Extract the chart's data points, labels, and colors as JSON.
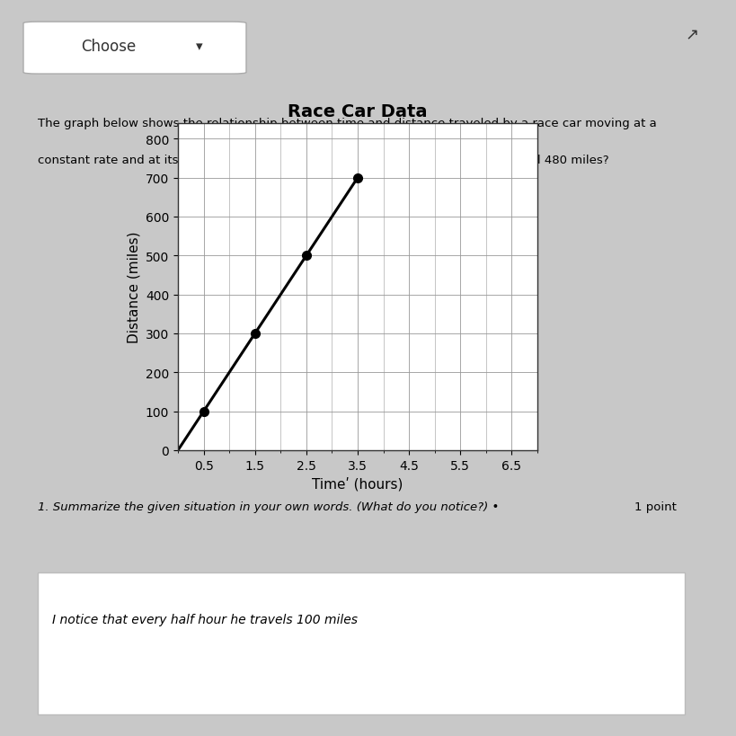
{
  "title": "Race Car Data",
  "xlabel": "Timeʹ (hours)",
  "ylabel": "Distance (miles)",
  "x_data": [
    0,
    0.5,
    1.5,
    2.5,
    3.5
  ],
  "y_data": [
    0,
    100,
    300,
    500,
    700
  ],
  "marked_points_x": [
    0.5,
    1.5,
    2.5,
    3.5
  ],
  "marked_points_y": [
    100,
    300,
    500,
    700
  ],
  "x_ticks": [
    0.5,
    1.5,
    2.5,
    3.5,
    4.5,
    5.5,
    6.5
  ],
  "x_tick_labels": [
    "0.5",
    "1.5",
    "2.5",
    "3.5",
    "4.5",
    "5.5",
    "6.5"
  ],
  "y_ticks": [
    0,
    100,
    200,
    300,
    400,
    500,
    600,
    700,
    800
  ],
  "y_tick_labels": [
    "0",
    "100",
    "200",
    "300",
    "400",
    "500",
    "600",
    "700",
    "800"
  ],
  "xlim": [
    0,
    7.0
  ],
  "ylim": [
    0,
    840
  ],
  "line_color": "#000000",
  "marker_color": "#000000",
  "marker_size": 7,
  "line_width": 2.2,
  "grid_color": "#999999",
  "bg_outer": "#c8c8c8",
  "bg_panel": "#d8d8d8",
  "bg_chart": "#ffffff",
  "title_fontsize": 14,
  "axis_label_fontsize": 11,
  "tick_fontsize": 10,
  "text_line1": "The graph below shows the relationship between time and distance traveled by a race car moving at a",
  "text_line2": "constant rate and at its maximum speed. How long did it take the race car to travel 480 miles?",
  "question_text": "1. Summarize the given situation in your own words. (What do you notice?) •",
  "point_text": "1 point",
  "answer_text": "I notice that every half hour he travels 100 miles",
  "choose_text": "Choose"
}
